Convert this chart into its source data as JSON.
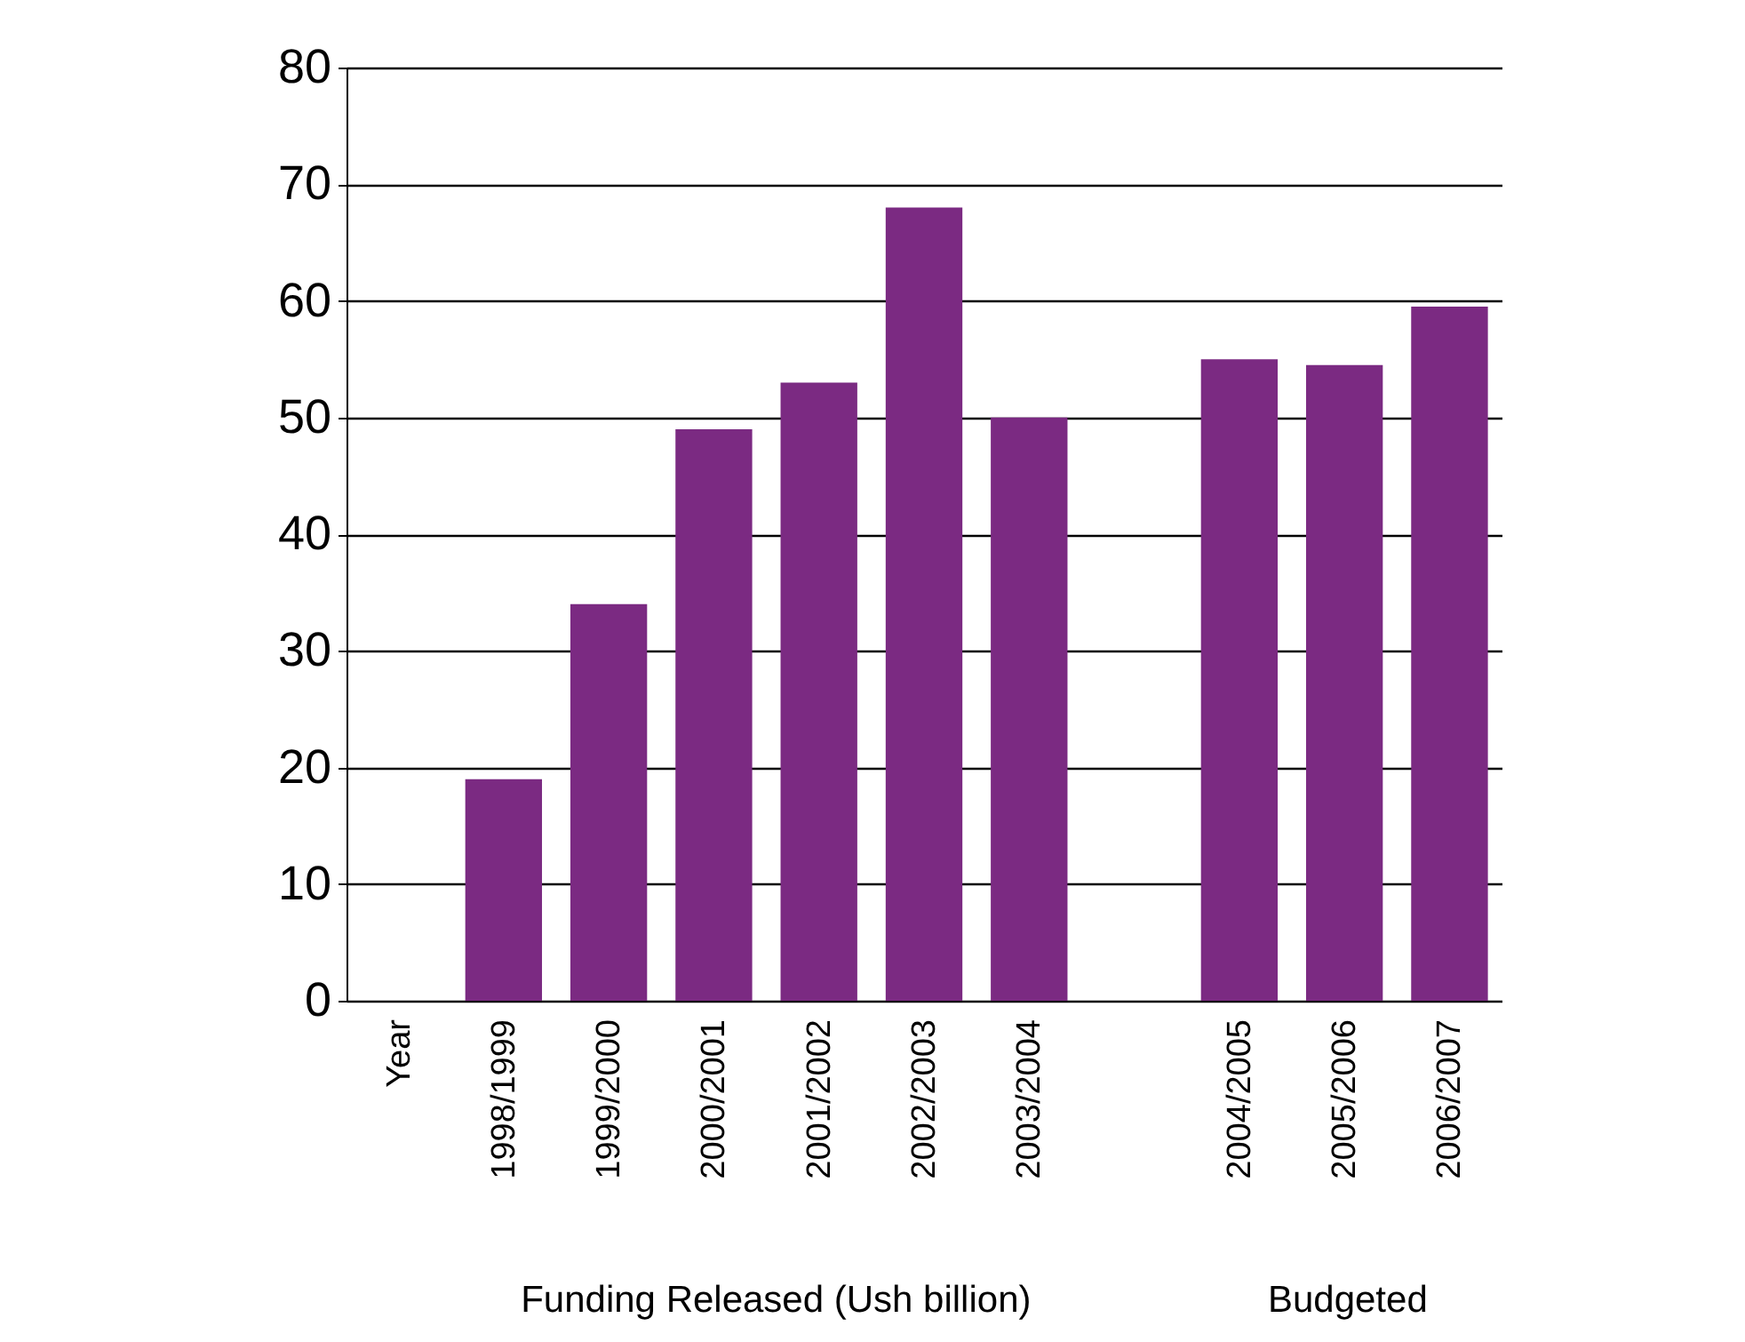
{
  "chart_data": {
    "type": "bar",
    "categories": [
      "Year",
      "1998/1999",
      "1999/2000",
      "2000/2001",
      "2001/2002",
      "2002/2003",
      "2003/2004",
      null,
      "2004/2005",
      "2005/2006",
      "2006/2007"
    ],
    "values": [
      null,
      19,
      34,
      49,
      53,
      68,
      50,
      null,
      55,
      54.5,
      59.5
    ],
    "color": "#7b2a82",
    "ylim": [
      0,
      80
    ],
    "yticks": [
      0,
      10,
      20,
      30,
      40,
      50,
      60,
      70,
      80
    ],
    "grid": "y",
    "annotations": [
      "Funding Released (Ush billion)",
      "Budgeted"
    ]
  }
}
